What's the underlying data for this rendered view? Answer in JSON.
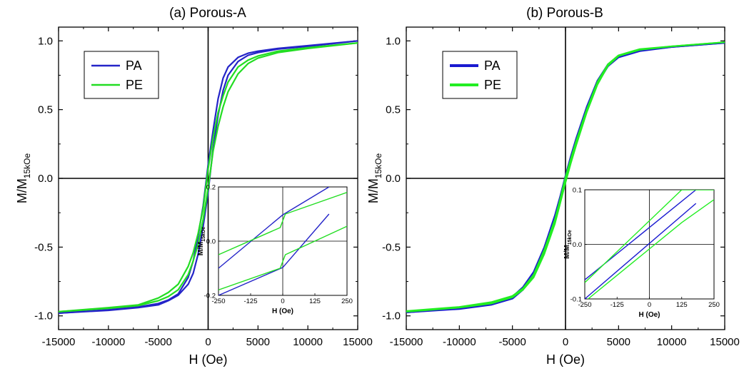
{
  "chart_data": [
    {
      "type": "line",
      "title": "(a) Porous-A",
      "xlabel": "H (Oe)",
      "ylabel_main": "M/M",
      "ylabel_sub": "15kOe",
      "xlim": [
        -15000,
        15000
      ],
      "ylim": [
        -1.1,
        1.1
      ],
      "xticks": [
        -15000,
        -10000,
        -5000,
        0,
        5000,
        10000,
        15000
      ],
      "xtick_labels": [
        "-15000",
        "-10000",
        "-5000",
        "0",
        "5000",
        "10000",
        "15000"
      ],
      "yticks": [
        -1.0,
        -0.5,
        0.0,
        0.5,
        1.0
      ],
      "ytick_labels": [
        "-1.0",
        "-0.5",
        "0.0",
        "0.5",
        "1.0"
      ],
      "colors": {
        "PA": "#2424c8",
        "PE": "#22dd22"
      },
      "legend_labels": [
        "PA",
        "PE"
      ],
      "legend_position": "top-left",
      "series": [
        {
          "name": "PA",
          "x": [
            -15000,
            -10000,
            -7000,
            -5000,
            -4000,
            -3000,
            -2000,
            -1500,
            -1000,
            -500,
            0,
            500,
            1000,
            1500,
            2000,
            3000,
            4000,
            5000,
            7000,
            10000,
            15000
          ],
          "upper": [
            -0.98,
            -0.955,
            -0.935,
            -0.91,
            -0.885,
            -0.84,
            -0.72,
            -0.6,
            -0.42,
            -0.2,
            0.1,
            0.35,
            0.58,
            0.73,
            0.81,
            0.88,
            0.91,
            0.925,
            0.945,
            0.965,
            1.0
          ],
          "lower": [
            -0.98,
            -0.96,
            -0.94,
            -0.92,
            -0.89,
            -0.85,
            -0.77,
            -0.69,
            -0.55,
            -0.35,
            -0.1,
            0.22,
            0.46,
            0.64,
            0.75,
            0.85,
            0.895,
            0.915,
            0.94,
            0.96,
            1.0
          ]
        },
        {
          "name": "PE",
          "x": [
            -15000,
            -10000,
            -7000,
            -5000,
            -4000,
            -3000,
            -2000,
            -1500,
            -1000,
            -500,
            0,
            500,
            1000,
            1500,
            2000,
            3000,
            4000,
            5000,
            7000,
            10000,
            15000
          ],
          "upper": [
            -0.97,
            -0.94,
            -0.92,
            -0.87,
            -0.83,
            -0.77,
            -0.64,
            -0.54,
            -0.4,
            -0.22,
            0.07,
            0.3,
            0.48,
            0.6,
            0.7,
            0.81,
            0.86,
            0.89,
            0.925,
            0.95,
            0.985
          ],
          "lower": [
            -0.97,
            -0.945,
            -0.925,
            -0.89,
            -0.86,
            -0.81,
            -0.7,
            -0.6,
            -0.48,
            -0.3,
            -0.07,
            0.2,
            0.38,
            0.52,
            0.63,
            0.76,
            0.835,
            0.875,
            0.915,
            0.945,
            0.985
          ]
        }
      ],
      "inset": {
        "xlim": [
          -250,
          250
        ],
        "ylim": [
          -0.2,
          0.2
        ],
        "xticks": [
          -250,
          -125,
          0,
          125,
          250
        ],
        "xtick_labels": [
          "-250",
          "-125",
          "0",
          "125",
          "250"
        ],
        "yticks": [
          -0.2,
          0.0,
          0.2
        ],
        "ytick_labels": [
          "-0.2",
          "0.0",
          "0.2"
        ],
        "xlabel": "H (Oe)",
        "ylabel_main": "M/M",
        "ylabel_sub": "15kOe",
        "series": [
          {
            "name": "PA",
            "x": [
              -250,
              0,
              180
            ],
            "upper": [
              -0.1,
              0.097,
              0.2
            ],
            "lower": [
              -0.2,
              -0.097,
              0.1
            ]
          },
          {
            "name": "PE",
            "x": [
              -250,
              -10,
              10,
              250
            ],
            "upper": [
              -0.05,
              0.05,
              0.1,
              0.18
            ],
            "lower": [
              -0.18,
              -0.1,
              -0.05,
              0.055
            ]
          }
        ]
      }
    },
    {
      "type": "line",
      "title": "(b) Porous-B",
      "xlabel": "H (Oe)",
      "ylabel_main": "M/M",
      "ylabel_sub": "15kOe",
      "xlim": [
        -15000,
        15000
      ],
      "ylim": [
        -1.1,
        1.1
      ],
      "xticks": [
        -15000,
        -10000,
        -5000,
        0,
        5000,
        10000,
        15000
      ],
      "xtick_labels": [
        "-15000",
        "-10000",
        "-5000",
        "0",
        "5000",
        "10000",
        "15000"
      ],
      "yticks": [
        -1.0,
        -0.5,
        0.0,
        0.5,
        1.0
      ],
      "ytick_labels": [
        "-1.0",
        "-0.5",
        "0.0",
        "0.5",
        "1.0"
      ],
      "colors": {
        "PA": "#1a1ad0",
        "PE": "#22ee22"
      },
      "legend_labels": [
        "PA",
        "PE"
      ],
      "legend_position": "top-left",
      "series": [
        {
          "name": "PA",
          "x": [
            -15000,
            -10000,
            -7000,
            -5000,
            -4000,
            -3000,
            -2000,
            -1000,
            -500,
            0,
            500,
            1000,
            2000,
            3000,
            4000,
            5000,
            7000,
            10000,
            15000
          ],
          "upper": [
            -0.975,
            -0.945,
            -0.91,
            -0.86,
            -0.79,
            -0.68,
            -0.5,
            -0.27,
            -0.13,
            0.02,
            0.16,
            0.29,
            0.52,
            0.71,
            0.83,
            0.885,
            0.93,
            0.955,
            0.985
          ],
          "lower": [
            -0.975,
            -0.95,
            -0.92,
            -0.875,
            -0.81,
            -0.7,
            -0.53,
            -0.3,
            -0.16,
            -0.02,
            0.13,
            0.27,
            0.5,
            0.69,
            0.815,
            0.88,
            0.925,
            0.955,
            0.985
          ]
        },
        {
          "name": "PE",
          "x": [
            -15000,
            -10000,
            -7000,
            -5000,
            -4000,
            -3000,
            -2000,
            -1000,
            -500,
            0,
            500,
            1000,
            2000,
            3000,
            4000,
            5000,
            7000,
            10000,
            15000
          ],
          "upper": [
            -0.965,
            -0.935,
            -0.9,
            -0.855,
            -0.8,
            -0.7,
            -0.52,
            -0.3,
            -0.15,
            0.01,
            0.14,
            0.27,
            0.5,
            0.7,
            0.83,
            0.895,
            0.94,
            0.96,
            0.99
          ],
          "lower": [
            -0.97,
            -0.94,
            -0.91,
            -0.865,
            -0.81,
            -0.72,
            -0.55,
            -0.33,
            -0.18,
            -0.03,
            0.11,
            0.24,
            0.48,
            0.68,
            0.82,
            0.89,
            0.935,
            0.96,
            0.99
          ]
        }
      ],
      "inset": {
        "xlim": [
          -250,
          250
        ],
        "ylim": [
          -0.1,
          0.1
        ],
        "xticks": [
          -250,
          -125,
          0,
          125,
          250
        ],
        "xtick_labels": [
          "-250",
          "-125",
          "0",
          "125",
          "250"
        ],
        "yticks": [
          -0.1,
          0.0,
          0.1
        ],
        "ytick_labels": [
          "-0.1",
          "0.0",
          "0.1"
        ],
        "xlabel": "H (Oe)",
        "ylabel_main": "M/M",
        "ylabel_sub": "15kOe",
        "series": [
          {
            "name": "PA",
            "x": [
              -250,
              180
            ],
            "upper": [
              -0.065,
              0.1
            ],
            "lower": [
              -0.1,
              0.075
            ]
          },
          {
            "name": "PE",
            "x": [
              -250,
              125,
              250
            ],
            "upper": [
              -0.07,
              0.1,
              0.1
            ],
            "lower": [
              -0.105,
              0.04,
              0.082
            ]
          }
        ]
      }
    }
  ]
}
